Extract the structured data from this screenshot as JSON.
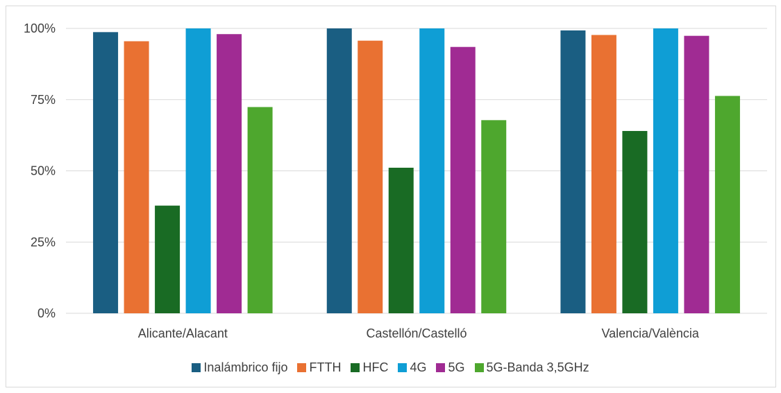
{
  "chart_data": {
    "type": "bar",
    "title": "",
    "xlabel": "",
    "ylabel": "",
    "ylim": [
      0,
      1
    ],
    "y_ticks": [
      "0%",
      "25%",
      "50%",
      "75%",
      "100%"
    ],
    "y_tick_values": [
      0,
      0.25,
      0.5,
      0.75,
      1.0
    ],
    "grid": true,
    "legend_position": "bottom",
    "categories": [
      "Alicante/Alacant",
      "Castellón/Castelló",
      "Valencia/València"
    ],
    "series": [
      {
        "name": "Inalámbrico fijo",
        "color": "#1a5e82",
        "values": [
          0.987,
          1.0,
          0.993
        ]
      },
      {
        "name": "FTTH",
        "color": "#e97132",
        "values": [
          0.955,
          0.957,
          0.977
        ]
      },
      {
        "name": "HFC",
        "color": "#196b24",
        "values": [
          0.378,
          0.511,
          0.64
        ]
      },
      {
        "name": "4G",
        "color": "#0f9ed5",
        "values": [
          1.0,
          1.0,
          1.0
        ]
      },
      {
        "name": "5G",
        "color": "#a02b93",
        "values": [
          0.98,
          0.935,
          0.974
        ]
      },
      {
        "name": "5G-Banda 3,5GHz",
        "color": "#4ea72e",
        "values": [
          0.724,
          0.678,
          0.763
        ]
      }
    ]
  }
}
